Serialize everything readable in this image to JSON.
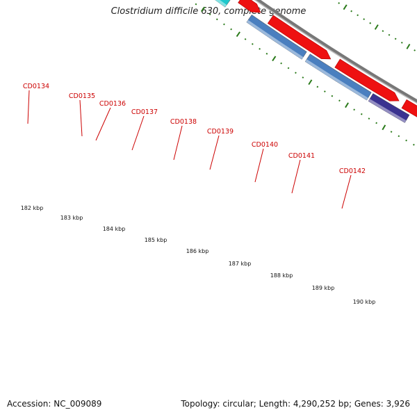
{
  "title": "Clostridium difficile 630, complete genome",
  "footer": {
    "accession": "Accession: NC_009089",
    "summary": "Topology: circular; Length: 4,290,252 bp; Genes: 3,926"
  },
  "colors": {
    "cds": "#ee1111",
    "backbone": "#777777",
    "label": "#cc0000",
    "ticks": "#2a7a1a"
  },
  "scale_labels": [
    "182 kbp",
    "183 kbp",
    "184 kbp",
    "185 kbp",
    "186 kbp",
    "187 kbp",
    "188 kbp",
    "189 kbp",
    "190 kbp"
  ],
  "genes": [
    {
      "name": "CD0134",
      "color": "#ff8c00"
    },
    {
      "name": "CD0135",
      "color": "#1fc8cc"
    },
    {
      "name": "CD0136",
      "color": "#1fc8cc"
    },
    {
      "name": "CD0137",
      "color": "#1fc8cc"
    },
    {
      "name": "CD0138",
      "color": "#4a7fbf"
    },
    {
      "name": "CD0139",
      "color": "#4a7fbf"
    },
    {
      "name": "CD0140",
      "color": "#3a3290"
    },
    {
      "name": "CD0141",
      "color": "#f08080"
    },
    {
      "name": "CD0142",
      "color": "#99ee22"
    }
  ]
}
